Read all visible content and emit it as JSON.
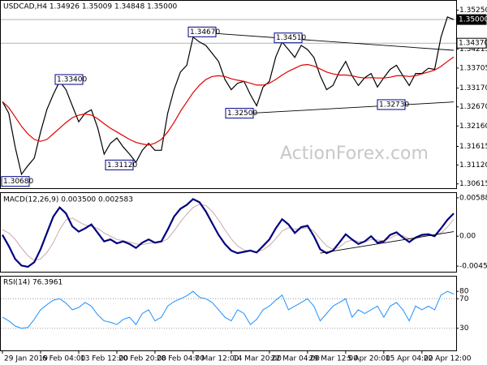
{
  "watermark": "ActionForex.com",
  "chart_data": [
    {
      "type": "line",
      "title": "USDCAD,H4  1.34926 1.35009 1.34848 1.35000",
      "ylim": [
        1.305,
        1.355
      ],
      "yticks": [
        {
          "value": 1.3525,
          "label": "1.35250"
        },
        {
          "value": 1.34215,
          "label": "1.34215"
        },
        {
          "value": 1.33705,
          "label": "1.33705"
        },
        {
          "value": 1.3317,
          "label": "1.33170"
        },
        {
          "value": 1.3267,
          "label": "1.32670"
        },
        {
          "value": 1.3216,
          "label": "1.32160"
        },
        {
          "value": 1.31615,
          "label": "1.31615"
        },
        {
          "value": 1.3112,
          "label": "1.31120"
        },
        {
          "value": 1.30615,
          "label": "1.30615"
        }
      ],
      "price_lines": [
        {
          "value": 1.35,
          "label": "1.35000",
          "color": "#000000"
        },
        {
          "value": 1.3437,
          "label": "1.34370",
          "color": "#ffffff"
        }
      ],
      "annotations": [
        {
          "value": 1.3467,
          "label": "1.34670"
        },
        {
          "value": 1.3451,
          "label": "1.34510"
        },
        {
          "value": 1.334,
          "label": "1.33400"
        },
        {
          "value": 1.325,
          "label": "1.32500"
        },
        {
          "value": 1.3273,
          "label": "1.32730"
        },
        {
          "value": 1.3112,
          "label": "1.31120"
        },
        {
          "value": 1.3068,
          "label": "1.30680"
        }
      ],
      "series": [
        {
          "color": "#000000",
          "width": 1.2,
          "values": [
            1.3281,
            1.325,
            1.316,
            1.3087,
            1.311,
            1.313,
            1.32,
            1.326,
            1.33,
            1.3335,
            1.3313,
            1.327,
            1.3227,
            1.325,
            1.3259,
            1.321,
            1.3141,
            1.317,
            1.3184,
            1.316,
            1.3141,
            1.3119,
            1.3151,
            1.317,
            1.3151,
            1.3151,
            1.325,
            1.3313,
            1.336,
            1.3378,
            1.3453,
            1.344,
            1.3431,
            1.341,
            1.3388,
            1.334,
            1.3313,
            1.333,
            1.3335,
            1.33,
            1.327,
            1.332,
            1.3335,
            1.34,
            1.344,
            1.342,
            1.3399,
            1.3431,
            1.342,
            1.3399,
            1.335,
            1.3313,
            1.3324,
            1.336,
            1.3388,
            1.335,
            1.3324,
            1.3345,
            1.3356,
            1.332,
            1.3345,
            1.3367,
            1.3378,
            1.335,
            1.3324,
            1.3356,
            1.3356,
            1.337,
            1.3367,
            1.3453,
            1.3507,
            1.35
          ]
        },
        {
          "color": "#e00000",
          "width": 1.2,
          "values": [
            1.3281,
            1.3265,
            1.324,
            1.3215,
            1.3195,
            1.318,
            1.3175,
            1.318,
            1.3195,
            1.321,
            1.3225,
            1.3238,
            1.3245,
            1.3248,
            1.3245,
            1.3235,
            1.3222,
            1.321,
            1.32,
            1.319,
            1.318,
            1.3172,
            1.3168,
            1.3165,
            1.317,
            1.318,
            1.32,
            1.3225,
            1.3255,
            1.328,
            1.3305,
            1.3325,
            1.334,
            1.3348,
            1.335,
            1.3348,
            1.3342,
            1.3338,
            1.3335,
            1.333,
            1.3325,
            1.3325,
            1.333,
            1.334,
            1.3352,
            1.3362,
            1.337,
            1.3378,
            1.338,
            1.3376,
            1.3368,
            1.336,
            1.3355,
            1.3352,
            1.3352,
            1.335,
            1.3346,
            1.3344,
            1.3345,
            1.3344,
            1.3344,
            1.3346,
            1.335,
            1.335,
            1.3348,
            1.335,
            1.3355,
            1.336,
            1.3365,
            1.3375,
            1.3388,
            1.34
          ]
        },
        {
          "color": "#000000",
          "width": 0.9,
          "values": [
            null,
            null,
            null,
            null,
            null,
            null,
            null,
            null,
            null,
            null,
            null,
            null,
            null,
            null,
            null,
            null,
            null,
            null,
            null,
            null,
            null,
            null,
            null,
            null,
            null,
            null,
            null,
            null,
            null,
            null,
            1.3467,
            null,
            null,
            null,
            null,
            null,
            null,
            null,
            null,
            null,
            null,
            null,
            null,
            null,
            null,
            null,
            null,
            null,
            null,
            null,
            null,
            null,
            null,
            null,
            null,
            null,
            null,
            null,
            null,
            null,
            null,
            null,
            null,
            null,
            null,
            null,
            null,
            null,
            null,
            null,
            null,
            1.3418
          ]
        },
        {
          "color": "#000000",
          "width": 0.9,
          "values": [
            null,
            null,
            null,
            null,
            null,
            null,
            null,
            null,
            null,
            null,
            null,
            null,
            null,
            null,
            null,
            null,
            null,
            null,
            null,
            null,
            null,
            null,
            null,
            null,
            null,
            null,
            null,
            null,
            null,
            null,
            null,
            null,
            null,
            null,
            null,
            null,
            null,
            null,
            null,
            1.325,
            null,
            null,
            null,
            null,
            null,
            null,
            null,
            null,
            null,
            null,
            null,
            null,
            null,
            null,
            null,
            null,
            null,
            null,
            null,
            null,
            null,
            null,
            null,
            null,
            null,
            null,
            null,
            null,
            null,
            null,
            null,
            1.328
          ]
        }
      ]
    },
    {
      "type": "line",
      "title": "MACD(12,26,9) 0.003500 0.002583",
      "ylim": [
        -0.00545,
        0.00662
      ],
      "yticks": [
        0.005889,
        {
          "value": 0,
          "label": "0.00"
        },
        -0.004593
      ],
      "series": [
        {
          "color": "#c8a0a0",
          "width": 0.9,
          "values": [
            0.001,
            0.0005,
            -0.0005,
            -0.0018,
            -0.003,
            -0.0037,
            -0.0035,
            -0.0025,
            -0.001,
            0.001,
            0.0025,
            0.0028,
            0.0022,
            0.0017,
            0.0015,
            0.0012,
            0.0005,
            0,
            -0.0005,
            -0.0007,
            -0.0009,
            -0.0012,
            -0.0013,
            -0.0011,
            -0.001,
            -0.0009,
            -0.0004,
            0.0008,
            0.0022,
            0.0034,
            0.0044,
            0.0049,
            0.0047,
            0.0038,
            0.0025,
            0.001,
            -0.0004,
            -0.0015,
            -0.0021,
            -0.0023,
            -0.0024,
            -0.0021,
            -0.0014,
            -0.0004,
            0.0008,
            0.0013,
            0.0011,
            0.0012,
            0.0013,
            0.0008,
            -0.0004,
            -0.0015,
            -0.002,
            -0.0017,
            -0.0009,
            -0.0006,
            -0.0008,
            -0.0009,
            -0.0005,
            -0.0006,
            -0.0007,
            -0.0003,
            0.0002,
            0.0001,
            -0.0004,
            -0.0004,
            -0.0001,
            0.0001,
            0.0001,
            0.0005,
            0.0014,
            0.002583
          ]
        },
        {
          "color": "#000080",
          "width": 2.2,
          "values": [
            0.0002,
            -0.0015,
            -0.0035,
            -0.0045,
            -0.0047,
            -0.004,
            -0.002,
            0.0005,
            0.003,
            0.0044,
            0.0035,
            0.0015,
            0.0007,
            0.0012,
            0.0018,
            0.0005,
            -0.0008,
            -0.0005,
            -0.0011,
            -0.0008,
            -0.0012,
            -0.0018,
            -0.001,
            -0.0005,
            -0.001,
            -0.0008,
            0.001,
            0.003,
            0.0042,
            0.0048,
            0.0057,
            0.0052,
            0.0038,
            0.002,
            0.0002,
            -0.0012,
            -0.0022,
            -0.0026,
            -0.0024,
            -0.0022,
            -0.0025,
            -0.0015,
            -0.0005,
            0.0012,
            0.0026,
            0.0018,
            0.0005,
            0.0014,
            0.0016,
            0,
            -0.002,
            -0.0026,
            -0.0022,
            -0.001,
            0.0003,
            -0.0005,
            -0.0012,
            -0.0008,
            0,
            -0.001,
            -0.0008,
            0.0002,
            0.0006,
            -0.0002,
            -0.0009,
            -0.0002,
            0.0002,
            0.0003,
            0,
            0.0012,
            0.0025,
            0.0035
          ]
        },
        {
          "color": "#000000",
          "width": 0.9,
          "values": [
            null,
            null,
            null,
            null,
            null,
            null,
            null,
            null,
            null,
            null,
            null,
            null,
            null,
            null,
            null,
            null,
            null,
            null,
            null,
            null,
            null,
            null,
            null,
            null,
            null,
            null,
            null,
            null,
            null,
            null,
            null,
            null,
            null,
            null,
            null,
            null,
            null,
            null,
            null,
            null,
            null,
            null,
            null,
            null,
            null,
            null,
            null,
            null,
            null,
            null,
            -0.0026,
            null,
            null,
            null,
            null,
            null,
            null,
            null,
            null,
            null,
            null,
            null,
            null,
            null,
            null,
            null,
            null,
            null,
            null,
            null,
            null,
            0.0007
          ]
        }
      ]
    },
    {
      "type": "line",
      "title": "RSI(14) 76.3961",
      "ylim": [
        0,
        100
      ],
      "yticks": [
        80,
        70,
        30
      ],
      "levels": [
        70,
        30
      ],
      "categories": [
        "29 Jan 2019",
        null,
        null,
        null,
        null,
        null,
        "6 Feb 04:00",
        null,
        null,
        null,
        null,
        null,
        "13 Feb 12:00",
        null,
        null,
        null,
        null,
        null,
        "20 Feb 20:00",
        null,
        null,
        null,
        null,
        null,
        "28 Feb 04:00",
        null,
        null,
        null,
        null,
        null,
        "7 Mar 12:00",
        null,
        null,
        null,
        null,
        null,
        "14 Mar 20:00",
        null,
        null,
        null,
        null,
        null,
        "22 Mar 04:00",
        null,
        null,
        null,
        null,
        null,
        "29 Mar 12:00",
        null,
        null,
        null,
        null,
        null,
        "5 Apr 20:00",
        null,
        null,
        null,
        null,
        null,
        "15 Apr 04:00",
        null,
        null,
        null,
        null,
        null,
        "22 Apr 12:00",
        null,
        null,
        null,
        null,
        null
      ],
      "series": [
        {
          "color": "#1e90ff",
          "width": 1,
          "values": [
            45,
            40,
            33,
            30,
            31,
            42,
            55,
            62,
            68,
            70,
            64,
            55,
            58,
            65,
            60,
            48,
            40,
            38,
            35,
            42,
            45,
            35,
            50,
            55,
            40,
            45,
            60,
            66,
            70,
            74,
            80,
            72,
            70,
            65,
            55,
            45,
            40,
            55,
            50,
            35,
            42,
            55,
            60,
            68,
            75,
            55,
            60,
            65,
            70,
            60,
            40,
            50,
            60,
            65,
            70,
            45,
            55,
            50,
            55,
            60,
            45,
            60,
            65,
            55,
            40,
            60,
            55,
            60,
            55,
            75,
            80,
            76.3961
          ]
        }
      ]
    }
  ]
}
